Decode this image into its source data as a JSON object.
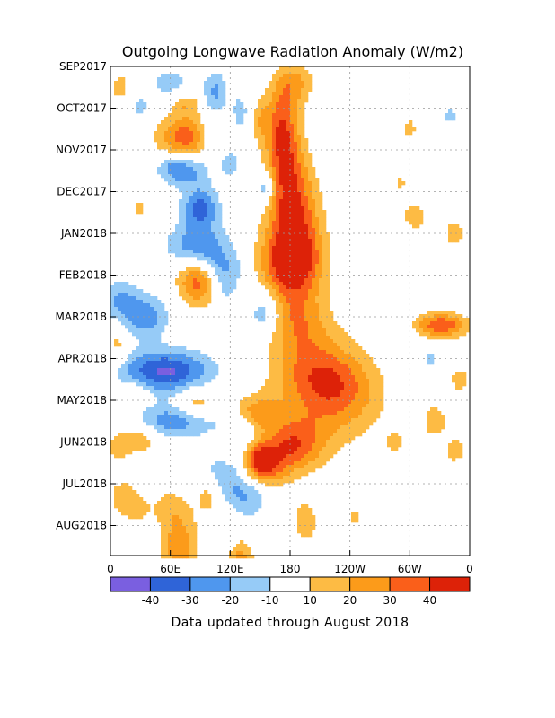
{
  "chart_data": {
    "type": "heatmap",
    "title": "Outgoing Longwave Radiation Anomaly (W/m2)",
    "subtitle": "",
    "xlabel": "",
    "ylabel": "",
    "footer": "Data updated through August 2018",
    "x_ticks": [
      "0",
      "60E",
      "120E",
      "180",
      "120W",
      "60W",
      "0"
    ],
    "y_ticks": [
      "SEP2017",
      "OCT2017",
      "NOV2017",
      "DEC2017",
      "JAN2018",
      "FEB2018",
      "MAR2018",
      "APR2018",
      "MAY2018",
      "JUN2018",
      "JUL2018",
      "AUG2018"
    ],
    "colorbar": {
      "labels": [
        "-40",
        "-30",
        "-20",
        "-10",
        "10",
        "20",
        "30",
        "40"
      ],
      "colors": [
        "#7a5fe0",
        "#2f64d8",
        "#4f97ee",
        "#96cbf7",
        "#ffffff",
        "#fdbb44",
        "#fc9b1a",
        "#fa5f1a",
        "#dd2208"
      ]
    },
    "longitude_range": [
      0,
      360
    ],
    "grid": true,
    "features": [
      {
        "lon": 170,
        "month": 1.2,
        "dlon": 16,
        "dmon": 0.9,
        "value": 25
      },
      {
        "lon": 175,
        "month": 2.0,
        "dlon": 18,
        "dmon": 0.9,
        "value": 28
      },
      {
        "lon": 180,
        "month": 3.0,
        "dlon": 24,
        "dmon": 0.9,
        "value": 30
      },
      {
        "lon": 185,
        "month": 4.0,
        "dlon": 26,
        "dmon": 0.9,
        "value": 33
      },
      {
        "lon": 180,
        "month": 4.7,
        "dlon": 30,
        "dmon": 0.7,
        "value": 40
      },
      {
        "lon": 185,
        "month": 5.8,
        "dlon": 28,
        "dmon": 0.9,
        "value": 25
      },
      {
        "lon": 200,
        "month": 6.8,
        "dlon": 40,
        "dmon": 0.9,
        "value": 18
      },
      {
        "lon": 215,
        "month": 7.5,
        "dlon": 45,
        "dmon": 0.7,
        "value": 18
      },
      {
        "lon": 210,
        "month": 8.3,
        "dlon": 60,
        "dmon": 0.9,
        "value": 14
      },
      {
        "lon": 230,
        "month": 7.8,
        "dlon": 40,
        "dmon": 0.9,
        "value": 15
      },
      {
        "lon": 165,
        "month": 9.3,
        "dlon": 40,
        "dmon": 0.6,
        "value": 20
      },
      {
        "lon": 185,
        "month": 9.0,
        "dlon": 30,
        "dmon": 0.6,
        "value": 22
      },
      {
        "lon": 155,
        "month": 9.6,
        "dlon": 20,
        "dmon": 0.5,
        "value": 24
      },
      {
        "lon": 185,
        "month": 0.4,
        "dlon": 18,
        "dmon": 0.5,
        "value": 22
      },
      {
        "lon": 75,
        "month": 1.7,
        "dlon": 28,
        "dmon": 0.5,
        "value": 36
      },
      {
        "lon": 88,
        "month": 5.1,
        "dlon": 20,
        "dmon": 0.6,
        "value": 38
      },
      {
        "lon": 90,
        "month": 3.4,
        "dlon": 18,
        "dmon": 0.5,
        "value": -34
      },
      {
        "lon": 75,
        "month": 2.5,
        "dlon": 22,
        "dmon": 0.4,
        "value": -25
      },
      {
        "lon": 155,
        "month": 2.9,
        "dlon": 10,
        "dmon": 0.4,
        "value": -25
      },
      {
        "lon": 88,
        "month": 4.3,
        "dlon": 30,
        "dmon": 0.5,
        "value": -30
      },
      {
        "lon": 108,
        "month": 4.8,
        "dlon": 25,
        "dmon": 0.4,
        "value": -20
      },
      {
        "lon": 155,
        "month": 5.9,
        "dlon": 16,
        "dmon": 0.5,
        "value": -22
      },
      {
        "lon": 115,
        "month": 5.3,
        "dlon": 15,
        "dmon": 0.4,
        "value": -15
      },
      {
        "lon": 35,
        "month": 6.0,
        "dlon": 22,
        "dmon": 0.5,
        "value": -28
      },
      {
        "lon": 10,
        "month": 5.6,
        "dlon": 18,
        "dmon": 0.5,
        "value": -20
      },
      {
        "lon": 55,
        "month": 7.3,
        "dlon": 45,
        "dmon": 0.5,
        "value": -42
      },
      {
        "lon": 65,
        "month": 8.5,
        "dlon": 40,
        "dmon": 0.4,
        "value": -28
      },
      {
        "lon": 130,
        "month": 8.7,
        "dlon": 20,
        "dmon": 0.4,
        "value": -15
      },
      {
        "lon": 150,
        "month": 9.2,
        "dlon": 20,
        "dmon": 0.4,
        "value": -12
      },
      {
        "lon": 110,
        "month": 9.9,
        "dlon": 25,
        "dmon": 0.6,
        "value": -25
      },
      {
        "lon": 140,
        "month": 10.3,
        "dlon": 20,
        "dmon": 0.5,
        "value": -18
      },
      {
        "lon": 45,
        "month": 10.8,
        "dlon": 15,
        "dmon": 0.6,
        "value": -15
      },
      {
        "lon": 125,
        "month": 11.5,
        "dlon": 25,
        "dmon": 0.5,
        "value": -15
      },
      {
        "lon": 85,
        "month": 8.1,
        "dlon": 18,
        "dmon": 0.4,
        "value": 20
      },
      {
        "lon": 100,
        "month": 10.2,
        "dlon": 15,
        "dmon": 0.5,
        "value": 25
      },
      {
        "lon": 145,
        "month": 8.3,
        "dlon": 22,
        "dmon": 0.4,
        "value": 22
      },
      {
        "lon": 150,
        "month": 9.4,
        "dlon": 12,
        "dmon": 0.4,
        "value": 28
      },
      {
        "lon": 30,
        "month": 8.9,
        "dlon": 18,
        "dmon": 0.4,
        "value": 18
      },
      {
        "lon": 8,
        "month": 9.1,
        "dlon": 12,
        "dmon": 0.4,
        "value": 15
      },
      {
        "lon": 8,
        "month": 6.7,
        "dlon": 10,
        "dmon": 0.5,
        "value": 15
      },
      {
        "lon": 50,
        "month": 10.7,
        "dlon": 30,
        "dmon": 0.6,
        "value": 25
      },
      {
        "lon": 70,
        "month": 11.6,
        "dlon": 18,
        "dmon": 0.6,
        "value": 28
      },
      {
        "lon": 130,
        "month": 11.7,
        "dlon": 15,
        "dmon": 0.5,
        "value": 35
      },
      {
        "lon": 195,
        "month": 10.9,
        "dlon": 12,
        "dmon": 0.5,
        "value": 18
      },
      {
        "lon": 12,
        "month": 10.3,
        "dlon": 14,
        "dmon": 0.4,
        "value": 15
      },
      {
        "lon": 30,
        "month": 3.4,
        "dlon": 8,
        "dmon": 0.3,
        "value": 13
      },
      {
        "lon": 10,
        "month": 0.5,
        "dlon": 10,
        "dmon": 0.4,
        "value": 15
      },
      {
        "lon": 60,
        "month": 0.4,
        "dlon": 20,
        "dmon": 0.4,
        "value": -15
      },
      {
        "lon": 105,
        "month": 0.6,
        "dlon": 12,
        "dmon": 0.5,
        "value": -22
      },
      {
        "lon": 30,
        "month": 1.0,
        "dlon": 14,
        "dmon": 0.4,
        "value": -12
      },
      {
        "lon": 150,
        "month": 1.3,
        "dlon": 8,
        "dmon": 0.5,
        "value": 15
      },
      {
        "lon": 75,
        "month": 0.9,
        "dlon": 15,
        "dmon": 0.3,
        "value": 18
      },
      {
        "lon": 100,
        "month": 1.7,
        "dlon": 12,
        "dmon": 0.5,
        "value": -16
      },
      {
        "lon": 60,
        "month": 2.4,
        "dlon": 15,
        "dmon": 0.3,
        "value": -12
      },
      {
        "lon": 120,
        "month": 2.3,
        "dlon": 12,
        "dmon": 0.5,
        "value": -13
      },
      {
        "lon": 130,
        "month": 1.1,
        "dlon": 10,
        "dmon": 0.5,
        "value": -14
      },
      {
        "lon": 320,
        "month": 6.2,
        "dlon": 18,
        "dmon": 0.3,
        "value": 22
      },
      {
        "lon": 340,
        "month": 6.2,
        "dlon": 20,
        "dmon": 0.3,
        "value": 28
      },
      {
        "lon": 325,
        "month": 8.5,
        "dlon": 12,
        "dmon": 0.4,
        "value": 18
      },
      {
        "lon": 350,
        "month": 7.5,
        "dlon": 12,
        "dmon": 0.4,
        "value": 14
      },
      {
        "lon": 305,
        "month": 3.6,
        "dlon": 15,
        "dmon": 0.4,
        "value": 15
      },
      {
        "lon": 300,
        "month": 1.5,
        "dlon": 10,
        "dmon": 0.4,
        "value": 12
      },
      {
        "lon": 345,
        "month": 4.0,
        "dlon": 14,
        "dmon": 0.4,
        "value": 14
      },
      {
        "lon": 340,
        "month": 1.2,
        "dlon": 10,
        "dmon": 0.3,
        "value": -12
      },
      {
        "lon": 290,
        "month": 2.8,
        "dlon": 8,
        "dmon": 0.3,
        "value": 12
      },
      {
        "lon": 285,
        "month": 9.0,
        "dlon": 10,
        "dmon": 0.3,
        "value": 13
      },
      {
        "lon": 345,
        "month": 9.2,
        "dlon": 10,
        "dmon": 0.3,
        "value": 18
      },
      {
        "lon": 245,
        "month": 10.8,
        "dlon": 10,
        "dmon": 0.3,
        "value": 12
      },
      {
        "lon": 320,
        "month": 7.0,
        "dlon": 10,
        "dmon": 0.3,
        "value": -12
      },
      {
        "lon": 25,
        "month": 7.8,
        "dlon": 14,
        "dmon": 0.3,
        "value": 12
      }
    ]
  }
}
